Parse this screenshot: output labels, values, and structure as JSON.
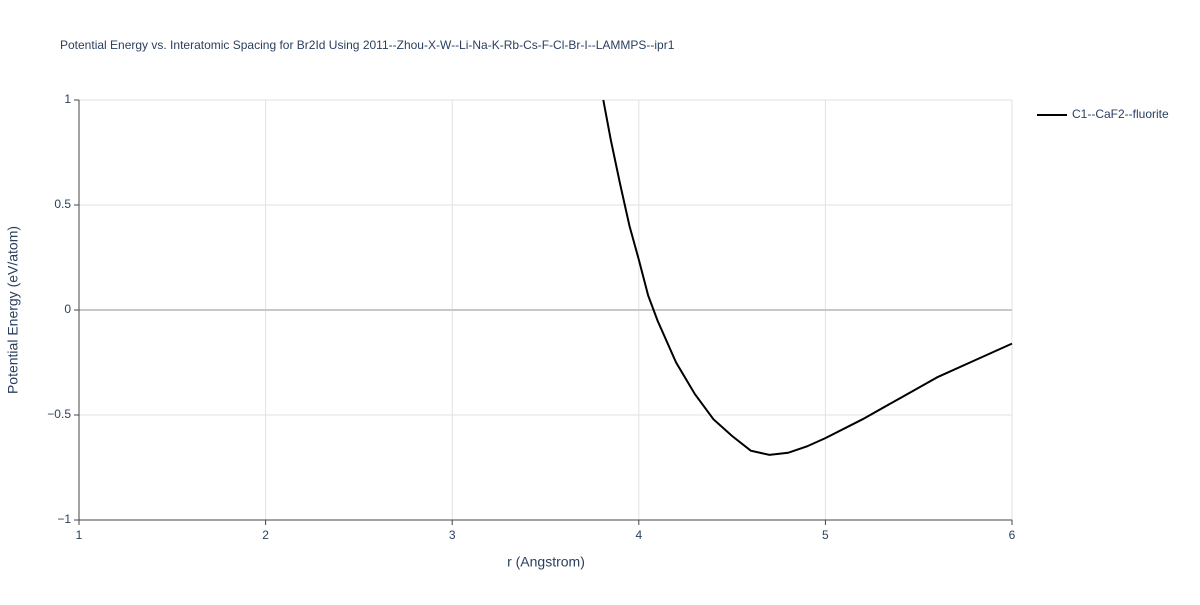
{
  "chart_data": {
    "type": "line",
    "title": "Potential Energy vs. Interatomic Spacing for Br2Id Using 2011--Zhou-X-W--Li-Na-K-Rb-Cs-F-Cl-Br-I--LAMMPS--ipr1",
    "x_label": "r (Angstrom)",
    "y_label": "Potential Energy (eV/atom)",
    "xlim": [
      1,
      6
    ],
    "ylim": [
      -1,
      1
    ],
    "xticks": [
      1,
      2,
      3,
      4,
      5,
      6
    ],
    "yticks": [
      {
        "value": -1,
        "label": "−1"
      },
      {
        "value": -0.5,
        "label": "−0.5"
      },
      0,
      0.5,
      1
    ],
    "grid": true,
    "legend": "right",
    "series": [
      {
        "name": "C1--CaF2--fluorite",
        "color": "#000000",
        "x": [
          3.81,
          3.85,
          3.9,
          3.95,
          4.0,
          4.05,
          4.1,
          4.2,
          4.3,
          4.4,
          4.5,
          4.6,
          4.7,
          4.8,
          4.9,
          5.0,
          5.2,
          5.4,
          5.6,
          5.8,
          5.9,
          6.0
        ],
        "values": [
          1.0,
          0.81,
          0.6,
          0.4,
          0.24,
          0.07,
          -0.05,
          -0.25,
          -0.4,
          -0.52,
          -0.6,
          -0.67,
          -0.69,
          -0.68,
          -0.65,
          -0.61,
          -0.52,
          -0.42,
          -0.32,
          -0.24,
          -0.2,
          -0.16
        ]
      }
    ]
  }
}
